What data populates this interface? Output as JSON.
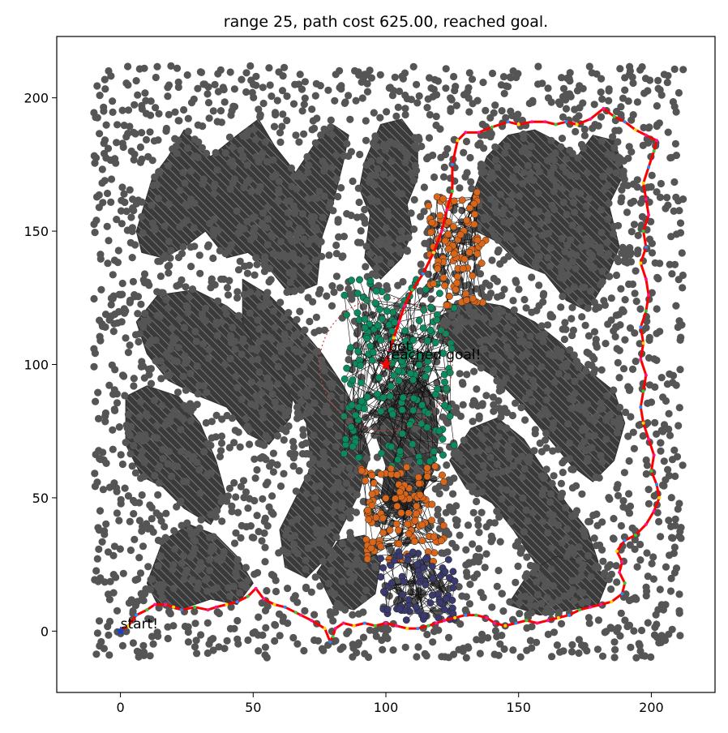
{
  "chart_data": {
    "type": "scatter",
    "title": "range 25, path cost 625.00, reached goal.",
    "xlabel": "",
    "ylabel": "",
    "xlim": [
      -24,
      224
    ],
    "ylim": [
      -23,
      223
    ],
    "xticks": [
      0,
      50,
      100,
      150,
      200
    ],
    "yticks": [
      0,
      50,
      100,
      150,
      200
    ],
    "grid": false,
    "legend": "none",
    "annotations": [
      {
        "text": "start!",
        "x": 0,
        "y": 1
      },
      {
        "text": "bot",
        "x": 101,
        "y": 105
      },
      {
        "text": "reached goal!",
        "x": 100,
        "y": 102
      }
    ],
    "start": {
      "x": 0,
      "y": 0
    },
    "goal": {
      "x": 100,
      "y": 100
    },
    "sensor_range": 25,
    "path": [
      [
        0,
        0
      ],
      [
        3,
        2
      ],
      [
        6,
        6
      ],
      [
        10,
        8
      ],
      [
        13,
        10
      ],
      [
        17,
        10
      ],
      [
        20,
        9
      ],
      [
        23,
        8
      ],
      [
        28,
        9
      ],
      [
        33,
        8
      ],
      [
        36,
        9
      ],
      [
        40,
        10
      ],
      [
        44,
        11
      ],
      [
        48,
        13
      ],
      [
        51,
        16
      ],
      [
        54,
        12
      ],
      [
        58,
        10
      ],
      [
        62,
        9
      ],
      [
        66,
        7
      ],
      [
        68,
        6
      ],
      [
        72,
        4
      ],
      [
        77,
        1
      ],
      [
        79,
        -4
      ],
      [
        80,
        -2
      ],
      [
        81,
        1
      ],
      [
        84,
        3
      ],
      [
        88,
        2
      ],
      [
        92,
        3
      ],
      [
        96,
        2
      ],
      [
        100,
        3
      ],
      [
        104,
        2
      ],
      [
        108,
        1
      ],
      [
        112,
        1
      ],
      [
        116,
        2
      ],
      [
        119,
        3
      ],
      [
        122,
        4
      ],
      [
        126,
        5
      ],
      [
        130,
        6
      ],
      [
        134,
        6
      ],
      [
        138,
        5
      ],
      [
        141,
        3
      ],
      [
        145,
        2
      ],
      [
        149,
        3
      ],
      [
        153,
        4
      ],
      [
        157,
        3
      ],
      [
        161,
        4
      ],
      [
        165,
        5
      ],
      [
        169,
        6
      ],
      [
        173,
        8
      ],
      [
        177,
        9
      ],
      [
        181,
        10
      ],
      [
        185,
        11
      ],
      [
        189,
        14
      ],
      [
        190,
        18
      ],
      [
        188,
        22
      ],
      [
        189,
        26
      ],
      [
        187,
        30
      ],
      [
        190,
        34
      ],
      [
        194,
        36
      ],
      [
        198,
        40
      ],
      [
        201,
        45
      ],
      [
        203,
        50
      ],
      [
        202,
        55
      ],
      [
        200,
        60
      ],
      [
        201,
        66
      ],
      [
        199,
        72
      ],
      [
        197,
        78
      ],
      [
        196,
        84
      ],
      [
        197,
        90
      ],
      [
        198,
        96
      ],
      [
        196,
        102
      ],
      [
        197,
        108
      ],
      [
        196,
        114
      ],
      [
        198,
        120
      ],
      [
        199,
        126
      ],
      [
        198,
        132
      ],
      [
        196,
        138
      ],
      [
        198,
        144
      ],
      [
        197,
        150
      ],
      [
        199,
        156
      ],
      [
        198,
        162
      ],
      [
        197,
        168
      ],
      [
        199,
        174
      ],
      [
        201,
        180
      ],
      [
        202,
        184
      ],
      [
        198,
        186
      ],
      [
        194,
        188
      ],
      [
        190,
        191
      ],
      [
        186,
        193
      ],
      [
        182,
        196
      ],
      [
        177,
        192
      ],
      [
        172,
        190
      ],
      [
        168,
        191
      ],
      [
        164,
        190
      ],
      [
        160,
        191
      ],
      [
        155,
        191
      ],
      [
        150,
        190
      ],
      [
        146,
        191
      ],
      [
        140,
        189
      ],
      [
        135,
        187
      ],
      [
        130,
        187
      ],
      [
        127,
        184
      ],
      [
        125,
        175
      ],
      [
        125,
        165
      ],
      [
        123,
        158
      ],
      [
        121,
        150
      ],
      [
        118,
        142
      ],
      [
        114,
        134
      ],
      [
        110,
        128
      ],
      [
        107,
        122
      ],
      [
        105,
        116
      ],
      [
        103,
        110
      ],
      [
        101,
        104
      ],
      [
        100,
        100
      ]
    ],
    "obstacles": [
      {
        "name": "upper-left blob",
        "points": [
          [
            6,
            150
          ],
          [
            12,
            170
          ],
          [
            18,
            178
          ],
          [
            24,
            188
          ],
          [
            34,
            178
          ],
          [
            44,
            186
          ],
          [
            52,
            192
          ],
          [
            58,
            182
          ],
          [
            66,
            172
          ],
          [
            74,
            184
          ],
          [
            80,
            190
          ],
          [
            86,
            186
          ],
          [
            84,
            176
          ],
          [
            80,
            160
          ],
          [
            76,
            148
          ],
          [
            74,
            130
          ],
          [
            64,
            126
          ],
          [
            56,
            136
          ],
          [
            48,
            142
          ],
          [
            40,
            140
          ],
          [
            32,
            150
          ],
          [
            24,
            144
          ],
          [
            16,
            140
          ],
          [
            8,
            142
          ]
        ]
      },
      {
        "name": "upper-center column",
        "points": [
          [
            92,
            176
          ],
          [
            98,
            190
          ],
          [
            106,
            192
          ],
          [
            112,
            184
          ],
          [
            112,
            170
          ],
          [
            108,
            160
          ],
          [
            110,
            150
          ],
          [
            106,
            140
          ],
          [
            98,
            132
          ],
          [
            92,
            140
          ],
          [
            94,
            156
          ],
          [
            90,
            166
          ]
        ]
      },
      {
        "name": "upper-right blob",
        "points": [
          [
            132,
            162
          ],
          [
            138,
            178
          ],
          [
            146,
            186
          ],
          [
            156,
            188
          ],
          [
            164,
            184
          ],
          [
            172,
            178
          ],
          [
            178,
            186
          ],
          [
            186,
            184
          ],
          [
            190,
            172
          ],
          [
            184,
            160
          ],
          [
            188,
            144
          ],
          [
            182,
            130
          ],
          [
            176,
            120
          ],
          [
            168,
            124
          ],
          [
            160,
            134
          ],
          [
            150,
            138
          ],
          [
            142,
            146
          ],
          [
            134,
            150
          ]
        ]
      },
      {
        "name": "left middle blob",
        "points": [
          [
            6,
            116
          ],
          [
            14,
            126
          ],
          [
            28,
            128
          ],
          [
            40,
            122
          ],
          [
            50,
            114
          ],
          [
            60,
            108
          ],
          [
            66,
            96
          ],
          [
            64,
            80
          ],
          [
            56,
            70
          ],
          [
            48,
            74
          ],
          [
            40,
            84
          ],
          [
            30,
            88
          ],
          [
            18,
            94
          ],
          [
            10,
            104
          ]
        ]
      },
      {
        "name": "left lower blob",
        "points": [
          [
            2,
            88
          ],
          [
            10,
            92
          ],
          [
            22,
            88
          ],
          [
            30,
            78
          ],
          [
            36,
            64
          ],
          [
            40,
            50
          ],
          [
            34,
            40
          ],
          [
            24,
            46
          ],
          [
            16,
            54
          ],
          [
            8,
            58
          ],
          [
            2,
            70
          ]
        ]
      },
      {
        "name": "center diagonal band",
        "points": [
          [
            46,
            132
          ],
          [
            56,
            126
          ],
          [
            66,
            116
          ],
          [
            76,
            104
          ],
          [
            84,
            92
          ],
          [
            90,
            80
          ],
          [
            94,
            66
          ],
          [
            90,
            52
          ],
          [
            84,
            40
          ],
          [
            78,
            28
          ],
          [
            70,
            20
          ],
          [
            62,
            24
          ],
          [
            60,
            38
          ],
          [
            66,
            50
          ],
          [
            72,
            62
          ],
          [
            70,
            78
          ],
          [
            62,
            92
          ],
          [
            52,
            104
          ],
          [
            46,
            116
          ]
        ]
      },
      {
        "name": "center column",
        "points": [
          [
            98,
            84
          ],
          [
            104,
            92
          ],
          [
            112,
            96
          ],
          [
            118,
            88
          ],
          [
            120,
            74
          ],
          [
            118,
            60
          ],
          [
            112,
            48
          ],
          [
            104,
            42
          ],
          [
            98,
            50
          ],
          [
            100,
            62
          ],
          [
            96,
            74
          ]
        ]
      },
      {
        "name": "right middle blob",
        "points": [
          [
            120,
            118
          ],
          [
            132,
            124
          ],
          [
            144,
            122
          ],
          [
            156,
            116
          ],
          [
            166,
            108
          ],
          [
            176,
            98
          ],
          [
            186,
            90
          ],
          [
            190,
            78
          ],
          [
            186,
            64
          ],
          [
            178,
            56
          ],
          [
            170,
            62
          ],
          [
            160,
            74
          ],
          [
            150,
            86
          ],
          [
            140,
            96
          ],
          [
            130,
            102
          ],
          [
            122,
            108
          ]
        ]
      },
      {
        "name": "right lower blob",
        "points": [
          [
            124,
            64
          ],
          [
            132,
            76
          ],
          [
            142,
            80
          ],
          [
            152,
            72
          ],
          [
            160,
            60
          ],
          [
            168,
            48
          ],
          [
            176,
            38
          ],
          [
            180,
            26
          ],
          [
            174,
            16
          ],
          [
            166,
            18
          ],
          [
            156,
            26
          ],
          [
            148,
            38
          ],
          [
            140,
            48
          ],
          [
            130,
            54
          ]
        ]
      },
      {
        "name": "bottom-left blob",
        "points": [
          [
            10,
            18
          ],
          [
            16,
            34
          ],
          [
            26,
            40
          ],
          [
            36,
            36
          ],
          [
            44,
            28
          ],
          [
            50,
            18
          ],
          [
            44,
            10
          ],
          [
            34,
            12
          ],
          [
            22,
            8
          ],
          [
            14,
            10
          ]
        ]
      },
      {
        "name": "bottom-center blob",
        "points": [
          [
            74,
            22
          ],
          [
            82,
            34
          ],
          [
            92,
            36
          ],
          [
            98,
            26
          ],
          [
            96,
            14
          ],
          [
            88,
            8
          ],
          [
            80,
            10
          ]
        ]
      },
      {
        "name": "bottom-right blob",
        "points": [
          [
            146,
            10
          ],
          [
            154,
            22
          ],
          [
            164,
            28
          ],
          [
            176,
            26
          ],
          [
            184,
            20
          ],
          [
            180,
            10
          ],
          [
            170,
            8
          ],
          [
            158,
            6
          ]
        ]
      }
    ],
    "frontier_clusters": [
      {
        "name": "teal (current)",
        "color": "#0a8a5e",
        "x_range": [
          84,
          126
        ],
        "y_range": [
          62,
          132
        ],
        "n": 180
      },
      {
        "name": "orange (upper)",
        "color": "#d9661a",
        "x_range": [
          116,
          138
        ],
        "y_range": [
          122,
          166
        ],
        "n": 90
      },
      {
        "name": "orange (lower)",
        "color": "#d9661a",
        "x_range": [
          90,
          122
        ],
        "y_range": [
          26,
          62
        ],
        "n": 110
      },
      {
        "name": "navy (bottom)",
        "color": "#3a3a6e",
        "x_range": [
          98,
          126
        ],
        "y_range": [
          4,
          30
        ],
        "n": 80
      }
    ],
    "colors": {
      "point": "#555555",
      "obstacle_fill": "#3a3a3a",
      "hatch": "#8a8a8a",
      "path": "#ff0000",
      "range_circle": "#d33b3b",
      "start_marker": "#1a3fcc"
    }
  }
}
